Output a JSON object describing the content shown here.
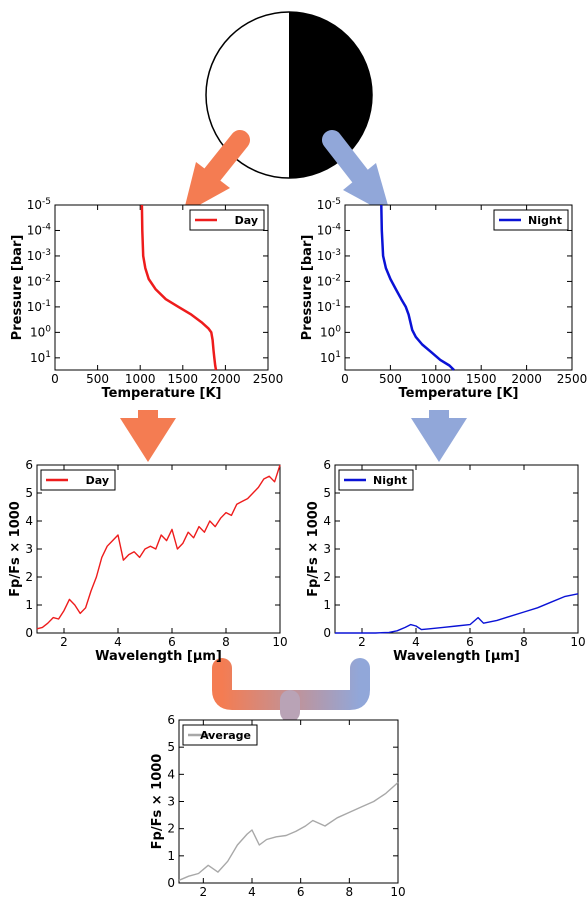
{
  "colors": {
    "day_arrow": "#f47c52",
    "night_arrow": "#91a7d9",
    "day_line": "#ee1c1c",
    "night_line": "#0a12d6",
    "average_line": "#a8a8a8",
    "planet_day": "#ffffff",
    "planet_night": "#000000"
  },
  "icons": {
    "planet": "half-lit-planet-icon"
  },
  "chart_data": [
    {
      "id": "tp_day",
      "type": "line",
      "ylog": true,
      "yinverted": true,
      "xlabel": "Temperature [K]",
      "ylabel": "Pressure [bar]",
      "xlim": [
        0,
        2500
      ],
      "ylim": [
        1e-05,
        30
      ],
      "xticks": [
        "0",
        "500",
        "1000",
        "1500",
        "2000",
        "2500"
      ],
      "yticks": [
        "10-5",
        "10-4",
        "10-3",
        "10-2",
        "10-1",
        "100",
        "101"
      ],
      "legend": "top-right",
      "series": [
        {
          "name": "Day",
          "x": [
            1020,
            1025,
            1035,
            1060,
            1100,
            1180,
            1300,
            1450,
            1600,
            1720,
            1800,
            1835,
            1850,
            1860,
            1870,
            1880,
            1890
          ],
          "y": [
            1e-05,
            0.0001,
            0.001,
            0.003,
            0.008,
            0.02,
            0.05,
            0.1,
            0.2,
            0.4,
            0.7,
            1,
            2,
            5,
            10,
            20,
            30
          ]
        }
      ]
    },
    {
      "id": "tp_night",
      "type": "line",
      "ylog": true,
      "yinverted": true,
      "xlabel": "Temperature [K]",
      "ylabel": "Pressure [bar]",
      "xlim": [
        0,
        2500
      ],
      "ylim": [
        1e-05,
        30
      ],
      "xticks": [
        "0",
        "500",
        "1000",
        "1500",
        "2000",
        "2500"
      ],
      "yticks": [
        "10-5",
        "10-4",
        "10-3",
        "10-2",
        "10-1",
        "100",
        "101"
      ],
      "legend": "top-right",
      "series": [
        {
          "name": "Night",
          "x": [
            400,
            405,
            420,
            450,
            500,
            560,
            620,
            670,
            700,
            720,
            740,
            780,
            850,
            950,
            1050,
            1150,
            1200
          ],
          "y": [
            1e-05,
            0.0001,
            0.001,
            0.003,
            0.008,
            0.02,
            0.05,
            0.1,
            0.2,
            0.4,
            0.8,
            1.5,
            3,
            6,
            12,
            20,
            30
          ]
        }
      ]
    },
    {
      "id": "spec_day",
      "type": "line",
      "xlabel": "Wavelength [μm]",
      "ylabel": "Fp/Fs × 1000",
      "xlim": [
        1,
        10
      ],
      "ylim": [
        0,
        6
      ],
      "xticks": [
        2,
        4,
        6,
        8,
        10
      ],
      "yticks": [
        0,
        1,
        2,
        3,
        4,
        5,
        6
      ],
      "legend": "top-left",
      "series": [
        {
          "name": "Day",
          "x": [
            1.0,
            1.2,
            1.4,
            1.6,
            1.8,
            2.0,
            2.2,
            2.4,
            2.6,
            2.8,
            3.0,
            3.2,
            3.4,
            3.6,
            3.8,
            4.0,
            4.2,
            4.4,
            4.6,
            4.8,
            5.0,
            5.2,
            5.4,
            5.6,
            5.8,
            6.0,
            6.2,
            6.4,
            6.6,
            6.8,
            7.0,
            7.2,
            7.4,
            7.6,
            7.8,
            8.0,
            8.2,
            8.4,
            8.6,
            8.8,
            9.0,
            9.2,
            9.4,
            9.6,
            9.8,
            10.0
          ],
          "y": [
            0.15,
            0.2,
            0.35,
            0.55,
            0.5,
            0.8,
            1.2,
            1.0,
            0.7,
            0.9,
            1.5,
            2.0,
            2.7,
            3.1,
            3.3,
            3.5,
            2.6,
            2.8,
            2.9,
            2.7,
            3.0,
            3.1,
            3.0,
            3.5,
            3.3,
            3.7,
            3.0,
            3.2,
            3.6,
            3.4,
            3.8,
            3.6,
            4.0,
            3.8,
            4.1,
            4.3,
            4.2,
            4.6,
            4.7,
            4.8,
            5.0,
            5.2,
            5.5,
            5.6,
            5.4,
            6.0
          ]
        }
      ]
    },
    {
      "id": "spec_night",
      "type": "line",
      "xlabel": "Wavelength [μm]",
      "ylabel": "Fp/Fs × 1000",
      "xlim": [
        1,
        10
      ],
      "ylim": [
        0,
        6
      ],
      "xticks": [
        2,
        4,
        6,
        8,
        10
      ],
      "yticks": [
        0,
        1,
        2,
        3,
        4,
        5,
        6
      ],
      "legend": "top-left",
      "series": [
        {
          "name": "Night",
          "x": [
            1.0,
            1.5,
            2.0,
            2.5,
            3.0,
            3.3,
            3.6,
            3.8,
            4.0,
            4.2,
            4.5,
            5.0,
            5.5,
            6.0,
            6.3,
            6.5,
            7.0,
            7.5,
            8.0,
            8.5,
            9.0,
            9.5,
            10.0
          ],
          "y": [
            0.0,
            0.0,
            0.0,
            0.0,
            0.02,
            0.08,
            0.2,
            0.3,
            0.25,
            0.12,
            0.15,
            0.2,
            0.25,
            0.3,
            0.55,
            0.35,
            0.45,
            0.6,
            0.75,
            0.9,
            1.1,
            1.3,
            1.4
          ]
        }
      ]
    },
    {
      "id": "spec_avg",
      "type": "line",
      "xlabel": "Wavelength [μm]",
      "ylabel": "Fp/Fs × 1000",
      "xlim": [
        1,
        10
      ],
      "ylim": [
        0,
        6
      ],
      "xticks": [
        2,
        4,
        6,
        8,
        10
      ],
      "yticks": [
        0,
        1,
        2,
        3,
        4,
        5,
        6
      ],
      "legend": "top-left",
      "series": [
        {
          "name": "Average",
          "x": [
            1.0,
            1.4,
            1.8,
            2.2,
            2.6,
            3.0,
            3.4,
            3.8,
            4.0,
            4.3,
            4.6,
            5.0,
            5.4,
            5.8,
            6.2,
            6.5,
            7.0,
            7.5,
            8.0,
            8.5,
            9.0,
            9.5,
            10.0
          ],
          "y": [
            0.1,
            0.25,
            0.35,
            0.65,
            0.4,
            0.8,
            1.4,
            1.8,
            1.95,
            1.4,
            1.6,
            1.7,
            1.75,
            1.9,
            2.1,
            2.3,
            2.1,
            2.4,
            2.6,
            2.8,
            3.0,
            3.3,
            3.7
          ]
        }
      ]
    }
  ]
}
